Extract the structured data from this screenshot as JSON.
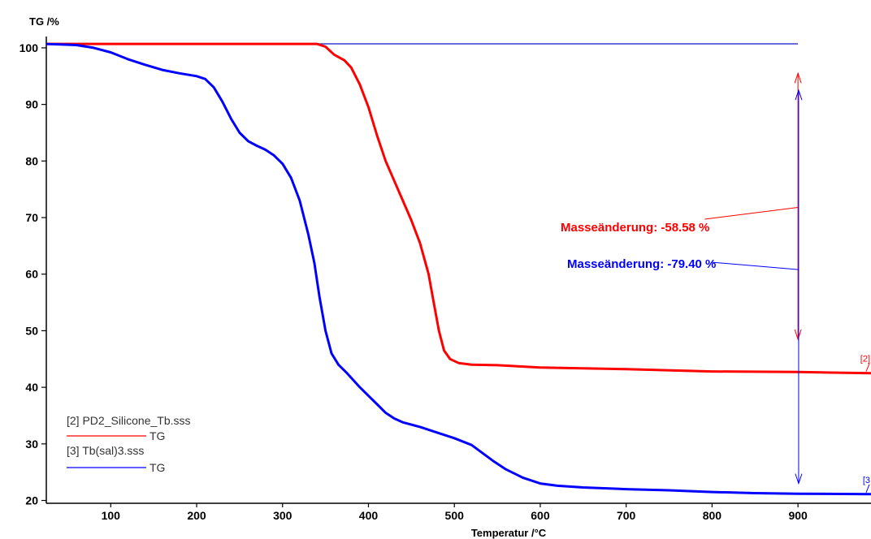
{
  "chart_data": {
    "type": "line",
    "ylabel": "TG /%",
    "xlabel": "Temperatur /°C",
    "xlim": [
      25,
      985
    ],
    "ylim": [
      19.5,
      102
    ],
    "x_ticks": [
      100,
      200,
      300,
      400,
      500,
      600,
      700,
      800,
      900
    ],
    "y_ticks": [
      20,
      30,
      40,
      50,
      60,
      70,
      80,
      90,
      100
    ],
    "grid": false,
    "legend_position": "bottom-left",
    "series": [
      {
        "name": "[2] PD2_Silicone_Tb.sss",
        "legend_sub": "TG",
        "end_tag": "[2]",
        "color": "#ff0000",
        "points": [
          [
            25,
            100.7
          ],
          [
            100,
            100.7
          ],
          [
            200,
            100.7
          ],
          [
            300,
            100.7
          ],
          [
            340,
            100.7
          ],
          [
            350,
            100.2
          ],
          [
            360,
            98.8
          ],
          [
            372,
            97.8
          ],
          [
            380,
            96.5
          ],
          [
            390,
            93.5
          ],
          [
            400,
            89.5
          ],
          [
            410,
            84.5
          ],
          [
            420,
            80
          ],
          [
            430,
            76.5
          ],
          [
            440,
            73
          ],
          [
            450,
            69.5
          ],
          [
            460,
            65.5
          ],
          [
            470,
            60
          ],
          [
            476,
            55
          ],
          [
            482,
            50
          ],
          [
            488,
            46.5
          ],
          [
            495,
            45
          ],
          [
            505,
            44.3
          ],
          [
            520,
            44
          ],
          [
            550,
            43.9
          ],
          [
            600,
            43.5
          ],
          [
            700,
            43.2
          ],
          [
            800,
            42.8
          ],
          [
            900,
            42.7
          ],
          [
            985,
            42.5
          ]
        ]
      },
      {
        "name": "[3] Tb(sal)3.sss",
        "legend_sub": "TG",
        "end_tag": "[3",
        "color": "#0000ff",
        "points": [
          [
            25,
            100.7
          ],
          [
            60,
            100.5
          ],
          [
            80,
            100
          ],
          [
            100,
            99.2
          ],
          [
            120,
            98
          ],
          [
            140,
            97
          ],
          [
            160,
            96.1
          ],
          [
            180,
            95.5
          ],
          [
            200,
            95
          ],
          [
            210,
            94.5
          ],
          [
            220,
            93
          ],
          [
            230,
            90.5
          ],
          [
            240,
            87.5
          ],
          [
            250,
            85
          ],
          [
            260,
            83.5
          ],
          [
            270,
            82.7
          ],
          [
            280,
            82
          ],
          [
            290,
            81
          ],
          [
            300,
            79.5
          ],
          [
            310,
            77
          ],
          [
            320,
            73
          ],
          [
            330,
            67
          ],
          [
            337,
            62
          ],
          [
            343,
            56
          ],
          [
            350,
            50
          ],
          [
            357,
            46
          ],
          [
            365,
            44
          ],
          [
            375,
            42.5
          ],
          [
            390,
            40
          ],
          [
            400,
            38.5
          ],
          [
            410,
            37
          ],
          [
            420,
            35.5
          ],
          [
            430,
            34.5
          ],
          [
            440,
            33.8
          ],
          [
            460,
            33
          ],
          [
            480,
            32
          ],
          [
            500,
            31
          ],
          [
            520,
            29.8
          ],
          [
            530,
            28.7
          ],
          [
            545,
            27
          ],
          [
            560,
            25.5
          ],
          [
            580,
            24
          ],
          [
            600,
            23
          ],
          [
            620,
            22.6
          ],
          [
            650,
            22.3
          ],
          [
            700,
            22
          ],
          [
            750,
            21.8
          ],
          [
            800,
            21.5
          ],
          [
            850,
            21.3
          ],
          [
            900,
            21.2
          ],
          [
            985,
            21.1
          ]
        ]
      }
    ],
    "horizontal_line": {
      "y": 100.7,
      "x_from": 25,
      "x_to": 900,
      "color": "#3b3bcc"
    },
    "annotations": [
      {
        "text": "Masseänderung: -58.58 %",
        "color": "#ff0000",
        "x_arrow": 900,
        "y_top": 95.5,
        "y_bottom": 48.5,
        "leader_y": 71.8
      },
      {
        "text": "Masseänderung: -79.40 %",
        "color": "#0000ff",
        "x_arrow": 900,
        "y_top": 92.5,
        "y_bottom": 23,
        "leader_y": 60.8
      }
    ]
  }
}
